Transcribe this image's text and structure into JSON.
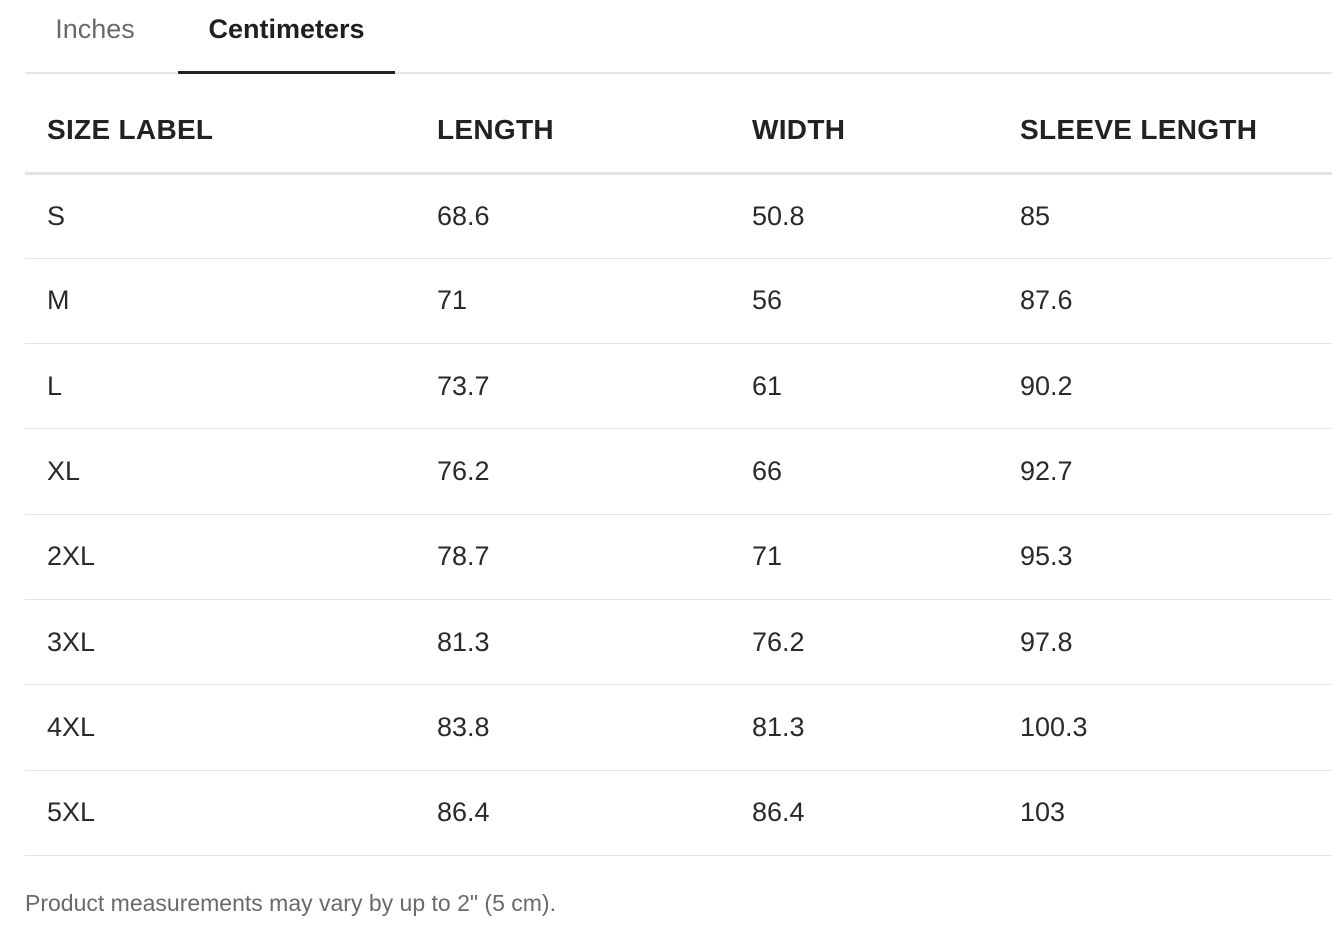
{
  "tabs": [
    {
      "label": "Inches",
      "active": false
    },
    {
      "label": "Centimeters",
      "active": true
    }
  ],
  "table": {
    "headers": [
      "SIZE LABEL",
      "LENGTH",
      "WIDTH",
      "SLEEVE LENGTH"
    ],
    "rows": [
      [
        "S",
        "68.6",
        "50.8",
        "85"
      ],
      [
        "M",
        "71",
        "56",
        "87.6"
      ],
      [
        "L",
        "73.7",
        "61",
        "90.2"
      ],
      [
        "XL",
        "76.2",
        "66",
        "92.7"
      ],
      [
        "2XL",
        "78.7",
        "71",
        "95.3"
      ],
      [
        "3XL",
        "81.3",
        "76.2",
        "97.8"
      ],
      [
        "4XL",
        "83.8",
        "81.3",
        "100.3"
      ],
      [
        "5XL",
        "86.4",
        "86.4",
        "103"
      ]
    ]
  },
  "footer": {
    "note": "Product measurements may vary by up to 2\" (5 cm)."
  }
}
